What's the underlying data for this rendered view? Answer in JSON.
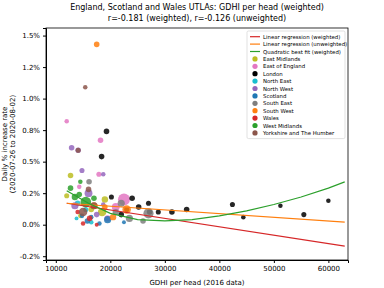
{
  "chart_data": {
    "type": "scatter",
    "title": "England, Scotland and Wales UTLAs: GDHI per head (weighted)",
    "subtitle": "r=-0.181 (weighted), r=-0.126 (unweighted)",
    "x_label": "GDHI per head (2016 data)",
    "y_label": [
      "Daily % increase rate",
      "(2020-07-26 to 2020-08-02)"
    ],
    "xlim": [
      8200,
      63600
    ],
    "ylim": [
      -0.28,
      1.56
    ],
    "xticks": [
      10000,
      20000,
      30000,
      40000,
      50000,
      60000
    ],
    "yticks": [
      {
        "value": -0.25,
        "label": "-0.2%"
      },
      {
        "value": 0,
        "label": "0.0%"
      },
      {
        "value": 0.25,
        "label": "0.2%"
      },
      {
        "value": 0.5,
        "label": "0.5%"
      },
      {
        "value": 0.75,
        "label": "0.8%"
      },
      {
        "value": 1,
        "label": "1.0%"
      },
      {
        "value": 1.25,
        "label": "1.2%"
      },
      {
        "value": 1.5,
        "label": "1.5%"
      }
    ],
    "grid": false,
    "legend": "upper right",
    "series": [
      {
        "name": "Linear regression (weighted)",
        "color": "#d62728",
        "type": "line",
        "line_style": "solid",
        "x": [
          12000,
          63000
        ],
        "values": [
          0.17,
          -0.17
        ]
      },
      {
        "name": "Linear regression (unweighted)",
        "color": "#ff7f0e",
        "type": "line",
        "line_style": "solid",
        "x": [
          12000,
          63000
        ],
        "values": [
          0.17,
          0.02
        ]
      },
      {
        "name": "Quadratic best fit (weighted)",
        "color": "#2ca02c",
        "type": "line",
        "line_style": "solid",
        "x": [
          12000,
          16000,
          20000,
          25000,
          30000,
          35000,
          40000,
          45000,
          50000,
          55000,
          60000,
          63000
        ],
        "values": [
          0.27,
          0.17,
          0.09,
          0.04,
          0.03,
          0.04,
          0.07,
          0.11,
          0.16,
          0.22,
          0.29,
          0.34
        ]
      },
      {
        "name": "East Midlands",
        "color": "#bcbd22",
        "type": "scatter",
        "marker": "circle",
        "x": [
          12700,
          12000,
          19000,
          16500,
          14500,
          18500
        ],
        "values": [
          0.39,
          0.23,
          0.2,
          0.12,
          0.07,
          0.1
        ],
        "sizes": [
          300,
          250,
          400,
          300,
          200,
          700
        ]
      },
      {
        "name": "East of England",
        "color": "#e377c2",
        "type": "scatter",
        "marker": "circle",
        "x": [
          12000,
          18200,
          17900,
          14300,
          21000,
          19500,
          22500
        ],
        "values": [
          0.82,
          0.67,
          0.4,
          0.3,
          0.14,
          0.05,
          0.2
        ],
        "sizes": [
          200,
          300,
          250,
          200,
          600,
          400,
          1400
        ]
      },
      {
        "name": "London",
        "color": "#000000",
        "type": "scatter",
        "marker": "circle",
        "x": [
          19300,
          18400,
          20200,
          24000,
          25200,
          27000,
          27200,
          28800,
          31300,
          34000,
          42400,
          44400,
          51200,
          55500,
          60000,
          22000,
          23000
        ],
        "values": [
          0.74,
          0.54,
          0.22,
          0.21,
          0.14,
          0.17,
          0.1,
          0.1,
          0.1,
          0.12,
          0.16,
          0.06,
          0.15,
          0.08,
          0.19,
          0.08,
          0.12
        ],
        "sizes": [
          300,
          300,
          250,
          300,
          300,
          250,
          300,
          250,
          300,
          300,
          250,
          200,
          200,
          250,
          200,
          300,
          250
        ]
      },
      {
        "name": "North East",
        "color": "#17becf",
        "type": "scatter",
        "marker": "circle",
        "x": [
          14000,
          15500,
          16500,
          13800
        ],
        "values": [
          0.17,
          0.12,
          0.02,
          0.05
        ],
        "sizes": [
          300,
          250,
          200,
          150
        ]
      },
      {
        "name": "North West",
        "color": "#9467bd",
        "type": "scatter",
        "marker": "circle",
        "x": [
          12900,
          14100,
          14800,
          18700,
          16000,
          13500,
          17500,
          18700
        ],
        "values": [
          0.61,
          0.59,
          0.43,
          0.4,
          0.25,
          0.15,
          0.08,
          0.16
        ],
        "sizes": [
          300,
          300,
          250,
          200,
          600,
          500,
          300,
          200
        ]
      },
      {
        "name": "Scotland",
        "color": "#1f77b4",
        "type": "scatter",
        "marker": "circle",
        "x": [
          14800,
          15800,
          18000,
          19500,
          22500,
          16500
        ],
        "values": [
          0.07,
          0.03,
          0.01,
          0.04,
          0.02,
          0.06
        ],
        "sizes": [
          200,
          300,
          200,
          500,
          150,
          200
        ]
      },
      {
        "name": "South East",
        "color": "#7f7f7f",
        "type": "scatter",
        "marker": "circle",
        "x": [
          16100,
          22000,
          27000,
          23500,
          26000,
          21000
        ],
        "values": [
          0.34,
          0.17,
          0.09,
          0.05,
          0.03,
          0.1
        ],
        "sizes": [
          300,
          500,
          1000,
          500,
          300,
          400
        ]
      },
      {
        "name": "South West",
        "color": "#ff7f0e",
        "type": "scatter",
        "marker": "circle",
        "x": [
          17500,
          17000,
          20500,
          23000,
          19000
        ],
        "values": [
          1.43,
          0.15,
          0.06,
          0.12,
          0.14
        ],
        "sizes": [
          300,
          500,
          400,
          700,
          300
        ]
      },
      {
        "name": "Wales",
        "color": "#d62728",
        "type": "scatter",
        "marker": "circle",
        "x": [
          15000,
          16200,
          17500,
          14000
        ],
        "values": [
          0.01,
          0.05,
          0.0,
          0.1
        ],
        "sizes": [
          200,
          300,
          150,
          200
        ]
      },
      {
        "name": "West Midlands",
        "color": "#2ca02c",
        "type": "scatter",
        "marker": "circle",
        "x": [
          12700,
          13500,
          14300,
          15500,
          17000,
          14500
        ],
        "values": [
          0.29,
          0.22,
          0.24,
          0.18,
          0.21,
          0.34
        ],
        "sizes": [
          300,
          400,
          300,
          1100,
          300,
          200
        ]
      },
      {
        "name": "Yorkshire and The Humber",
        "color": "#8c564b",
        "type": "scatter",
        "marker": "circle",
        "x": [
          15400,
          14100,
          16000,
          17000,
          15000
        ],
        "values": [
          1.09,
          0.59,
          0.28,
          0.15,
          0.1
        ],
        "sizes": [
          200,
          250,
          300,
          500,
          700
        ]
      }
    ]
  }
}
